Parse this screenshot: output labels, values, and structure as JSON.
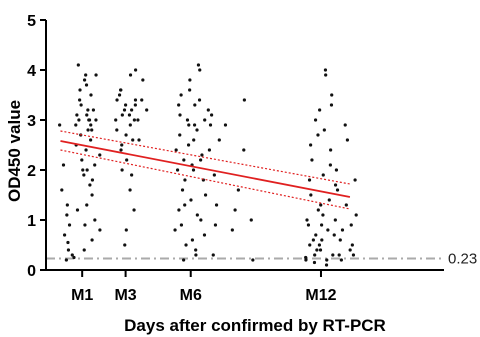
{
  "chart_data": {
    "type": "scatter",
    "xlabel": "Days after confirmed by RT-PCR",
    "ylabel": "OD450 value",
    "ylim": [
      0,
      5
    ],
    "xlim": [
      -20,
      530
    ],
    "yticks": [
      {
        "value": 0,
        "label": "0"
      },
      {
        "value": 1,
        "label": "1"
      },
      {
        "value": 2,
        "label": "2"
      },
      {
        "value": 3,
        "label": "3"
      },
      {
        "value": 4,
        "label": "4"
      },
      {
        "value": 5,
        "label": "5"
      }
    ],
    "xticks": [
      {
        "value": 30,
        "label": "M1"
      },
      {
        "value": 90,
        "label": "M3"
      },
      {
        "value": 180,
        "label": "M6"
      },
      {
        "value": 360,
        "label": "M12"
      }
    ],
    "reference_line": {
      "y": 0.23,
      "label": "0.23",
      "color": "#aaaaaa",
      "style": "dash-dot"
    },
    "regression": {
      "x_range": [
        0,
        400
      ],
      "fit": [
        2.58,
        1.46
      ],
      "ci_upper": [
        2.78,
        1.72
      ],
      "ci_lower": [
        2.4,
        1.22
      ],
      "line_color": "#e02020"
    },
    "point_color": "#111111",
    "series": [
      {
        "points": [
          [
            3,
            2.9
          ],
          [
            5,
            2.1
          ],
          [
            7,
            1.3
          ],
          [
            9,
            0.7
          ],
          [
            11,
            0.4
          ],
          [
            13,
            0.3
          ],
          [
            15,
            0.9
          ],
          [
            8,
            1.1
          ],
          [
            4,
            0.2
          ],
          [
            12,
            0.55
          ],
          [
            17,
            0.25
          ],
          [
            6,
            1.6
          ],
          [
            22,
            2.9
          ],
          [
            24,
            3.4
          ],
          [
            26,
            3.1
          ],
          [
            28,
            2.7
          ],
          [
            30,
            3.8
          ],
          [
            32,
            2.2
          ],
          [
            34,
            3.9
          ],
          [
            36,
            3.0
          ],
          [
            38,
            1.3
          ],
          [
            40,
            2.6
          ],
          [
            42,
            3.2
          ],
          [
            44,
            2.8
          ],
          [
            23,
            3.0
          ],
          [
            25,
            2.5
          ],
          [
            27,
            3.6
          ],
          [
            29,
            1.9
          ],
          [
            31,
            3.3
          ],
          [
            33,
            0.9
          ],
          [
            35,
            3.0
          ],
          [
            37,
            2.4
          ],
          [
            39,
            1.7
          ],
          [
            41,
            2.0
          ],
          [
            43,
            3.5
          ],
          [
            45,
            1.0
          ],
          [
            47,
            0.6
          ],
          [
            49,
            3.0
          ],
          [
            51,
            2.3
          ],
          [
            26,
            1.2
          ],
          [
            30,
            2.0
          ],
          [
            34,
            2.8
          ],
          [
            38,
            3.1
          ],
          [
            42,
            1.5
          ],
          [
            46,
            2.9
          ],
          [
            50,
            3.9
          ],
          [
            52,
            0.8
          ],
          [
            28,
            4.1
          ],
          [
            36,
            3.7
          ],
          [
            44,
            2.1
          ],
          [
            48,
            3.2
          ],
          [
            32,
            0.4
          ],
          [
            40,
            1.8
          ],
          [
            78,
            3.0
          ],
          [
            80,
            3.5
          ],
          [
            82,
            2.8
          ],
          [
            84,
            3.6
          ],
          [
            86,
            3.2
          ],
          [
            88,
            2.5
          ],
          [
            90,
            3.3
          ],
          [
            92,
            3.1
          ],
          [
            94,
            2.2
          ],
          [
            96,
            3.9
          ],
          [
            98,
            3.0
          ],
          [
            100,
            1.9
          ],
          [
            102,
            3.4
          ],
          [
            104,
            2.6
          ],
          [
            79,
            3.4
          ],
          [
            83,
            3.1
          ],
          [
            87,
            2.4
          ],
          [
            91,
            0.8
          ],
          [
            95,
            3.2
          ],
          [
            99,
            2.9
          ],
          [
            103,
            4.0
          ],
          [
            81,
            2.0
          ],
          [
            85,
            3.6
          ],
          [
            89,
            2.7
          ],
          [
            93,
            0.5
          ],
          [
            97,
            1.6
          ],
          [
            101,
            3.3
          ],
          [
            105,
            1.2
          ],
          [
            107,
            3.0
          ],
          [
            109,
            3.4
          ],
          [
            111,
            2.6
          ],
          [
            113,
            3.8
          ],
          [
            115,
            3.2
          ],
          [
            160,
            0.8
          ],
          [
            162,
            1.2
          ],
          [
            164,
            2.4
          ],
          [
            166,
            3.1
          ],
          [
            168,
            2.2
          ],
          [
            170,
            3.5
          ],
          [
            172,
            1.8
          ],
          [
            174,
            2.9
          ],
          [
            176,
            0.5
          ],
          [
            178,
            3.8
          ],
          [
            180,
            2.6
          ],
          [
            182,
            1.4
          ],
          [
            184,
            3.3
          ],
          [
            186,
            2.1
          ],
          [
            188,
            0.3
          ],
          [
            190,
            4.0
          ],
          [
            192,
            2.8
          ],
          [
            194,
            1.0
          ],
          [
            196,
            3.0
          ],
          [
            198,
            2.3
          ],
          [
            161,
            2.0
          ],
          [
            163,
            0.9
          ],
          [
            165,
            3.3
          ],
          [
            167,
            1.6
          ],
          [
            169,
            2.7
          ],
          [
            171,
            0.2
          ],
          [
            173,
            3.0
          ],
          [
            175,
            1.3
          ],
          [
            177,
            2.5
          ],
          [
            179,
            0.6
          ],
          [
            181,
            3.6
          ],
          [
            183,
            2.0
          ],
          [
            185,
            1.1
          ],
          [
            187,
            2.9
          ],
          [
            189,
            4.1
          ],
          [
            191,
            0.4
          ],
          [
            193,
            3.4
          ],
          [
            195,
            1.8
          ],
          [
            197,
            2.2
          ],
          [
            199,
            0.7
          ],
          [
            201,
            3.2
          ],
          [
            203,
            1.5
          ],
          [
            205,
            2.4
          ],
          [
            207,
            0.3
          ],
          [
            209,
            2.9
          ],
          [
            211,
            1.9
          ],
          [
            213,
            3.1
          ],
          [
            215,
            0.9
          ],
          [
            217,
            2.6
          ],
          [
            219,
            1.3
          ],
          [
            228,
            2.9
          ],
          [
            238,
            1.2
          ],
          [
            240,
            0.8
          ],
          [
            245,
            1.6
          ],
          [
            250,
            3.4
          ],
          [
            255,
            2.4
          ],
          [
            262,
            1.0
          ],
          [
            270,
            0.2
          ],
          [
            340,
            0.2
          ],
          [
            342,
            0.5
          ],
          [
            344,
            1.0
          ],
          [
            346,
            1.5
          ],
          [
            348,
            0.3
          ],
          [
            350,
            2.2
          ],
          [
            352,
            0.7
          ],
          [
            354,
            3.2
          ],
          [
            356,
            0.4
          ],
          [
            358,
            1.3
          ],
          [
            360,
            2.7
          ],
          [
            362,
            0.6
          ],
          [
            364,
            3.9
          ],
          [
            366,
            1.1
          ],
          [
            368,
            0.2
          ],
          [
            370,
            2.4
          ],
          [
            372,
            0.8
          ],
          [
            374,
            3.5
          ],
          [
            376,
            1.7
          ],
          [
            378,
            0.3
          ],
          [
            341,
            0.9
          ],
          [
            343,
            0.25
          ],
          [
            345,
            1.8
          ],
          [
            347,
            0.6
          ],
          [
            349,
            2.5
          ],
          [
            351,
            0.15
          ],
          [
            353,
            1.2
          ],
          [
            355,
            3.0
          ],
          [
            357,
            0.5
          ],
          [
            359,
            1.9
          ],
          [
            361,
            0.4
          ],
          [
            363,
            2.8
          ],
          [
            365,
            0.9
          ],
          [
            367,
            4.0
          ],
          [
            369,
            1.4
          ],
          [
            371,
            0.1
          ],
          [
            373,
            2.1
          ],
          [
            375,
            0.7
          ],
          [
            377,
            3.3
          ],
          [
            379,
            1.0
          ],
          [
            381,
            0.3
          ],
          [
            383,
            2.0
          ],
          [
            385,
            0.6
          ],
          [
            387,
            1.6
          ],
          [
            389,
            0.2
          ],
          [
            391,
            2.9
          ],
          [
            393,
            0.8
          ],
          [
            395,
            1.3
          ],
          [
            397,
            0.4
          ],
          [
            399,
            2.6
          ],
          [
            401,
            0.9
          ],
          [
            403,
            1.8
          ],
          [
            405,
            0.5
          ],
          [
            407,
            1.1
          ],
          [
            409,
            0.3
          ]
        ]
      }
    ]
  }
}
